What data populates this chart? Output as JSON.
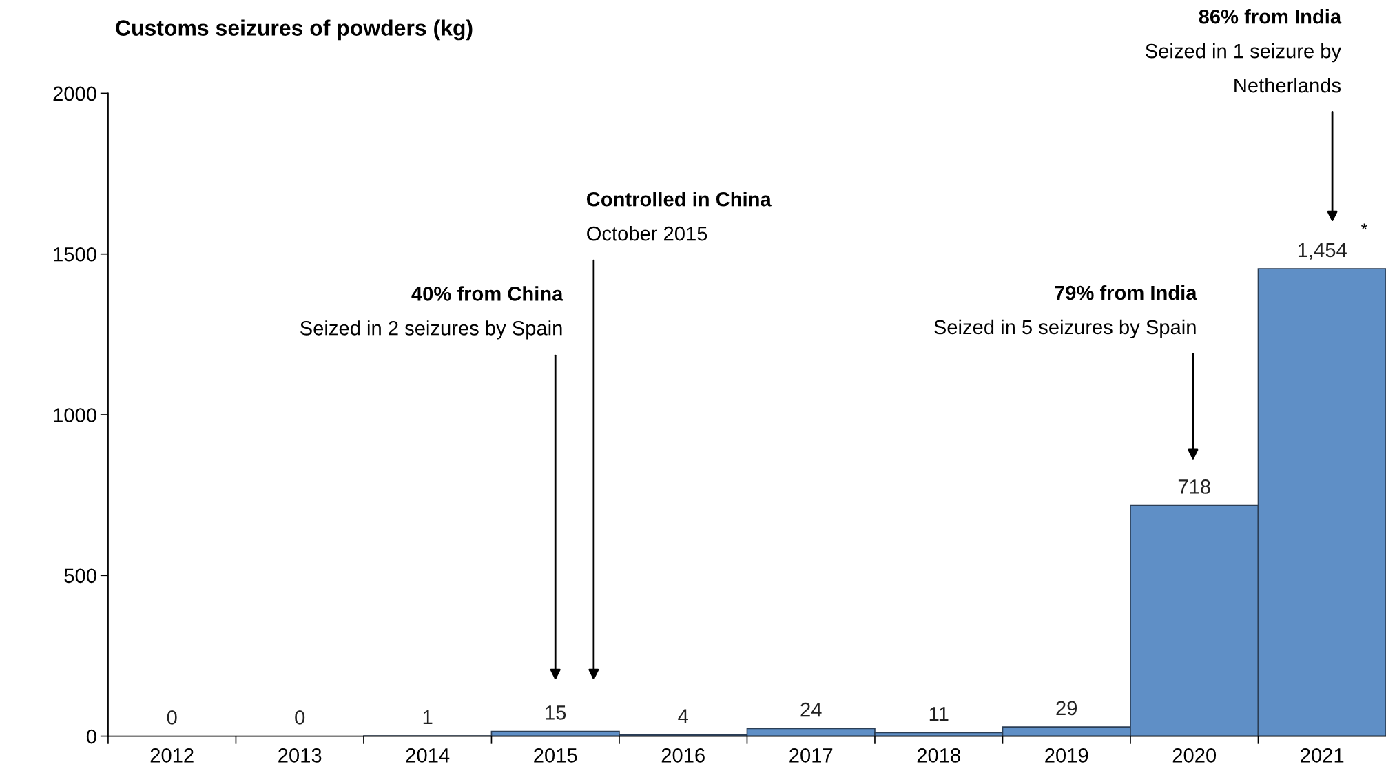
{
  "chart_data": {
    "type": "bar",
    "title": "Customs seizures of powders (kg)",
    "categories": [
      "2012",
      "2013",
      "2014",
      "2015",
      "2016",
      "2017",
      "2018",
      "2019",
      "2020",
      "2021"
    ],
    "values": [
      0,
      0,
      1,
      15,
      4,
      24,
      11,
      29,
      718,
      1454
    ],
    "value_labels": [
      "0",
      "0",
      "1",
      "15",
      "4",
      "24",
      "11",
      "29",
      "718",
      "1,454"
    ],
    "color": "#5f8fc6",
    "ylim": [
      0,
      2000
    ],
    "yticks": [
      0,
      500,
      1000,
      1500,
      2000
    ],
    "grid": false,
    "legend": false,
    "annotations": [
      "40% from China\nSeized in 2 seizures by Spain",
      "Controlled in China\nOctober 2015",
      "79% from India\nSeized in 5 seizures by Spain",
      "86% from India\nSeized in 1 seizure by\nNetherlands",
      "*"
    ]
  }
}
